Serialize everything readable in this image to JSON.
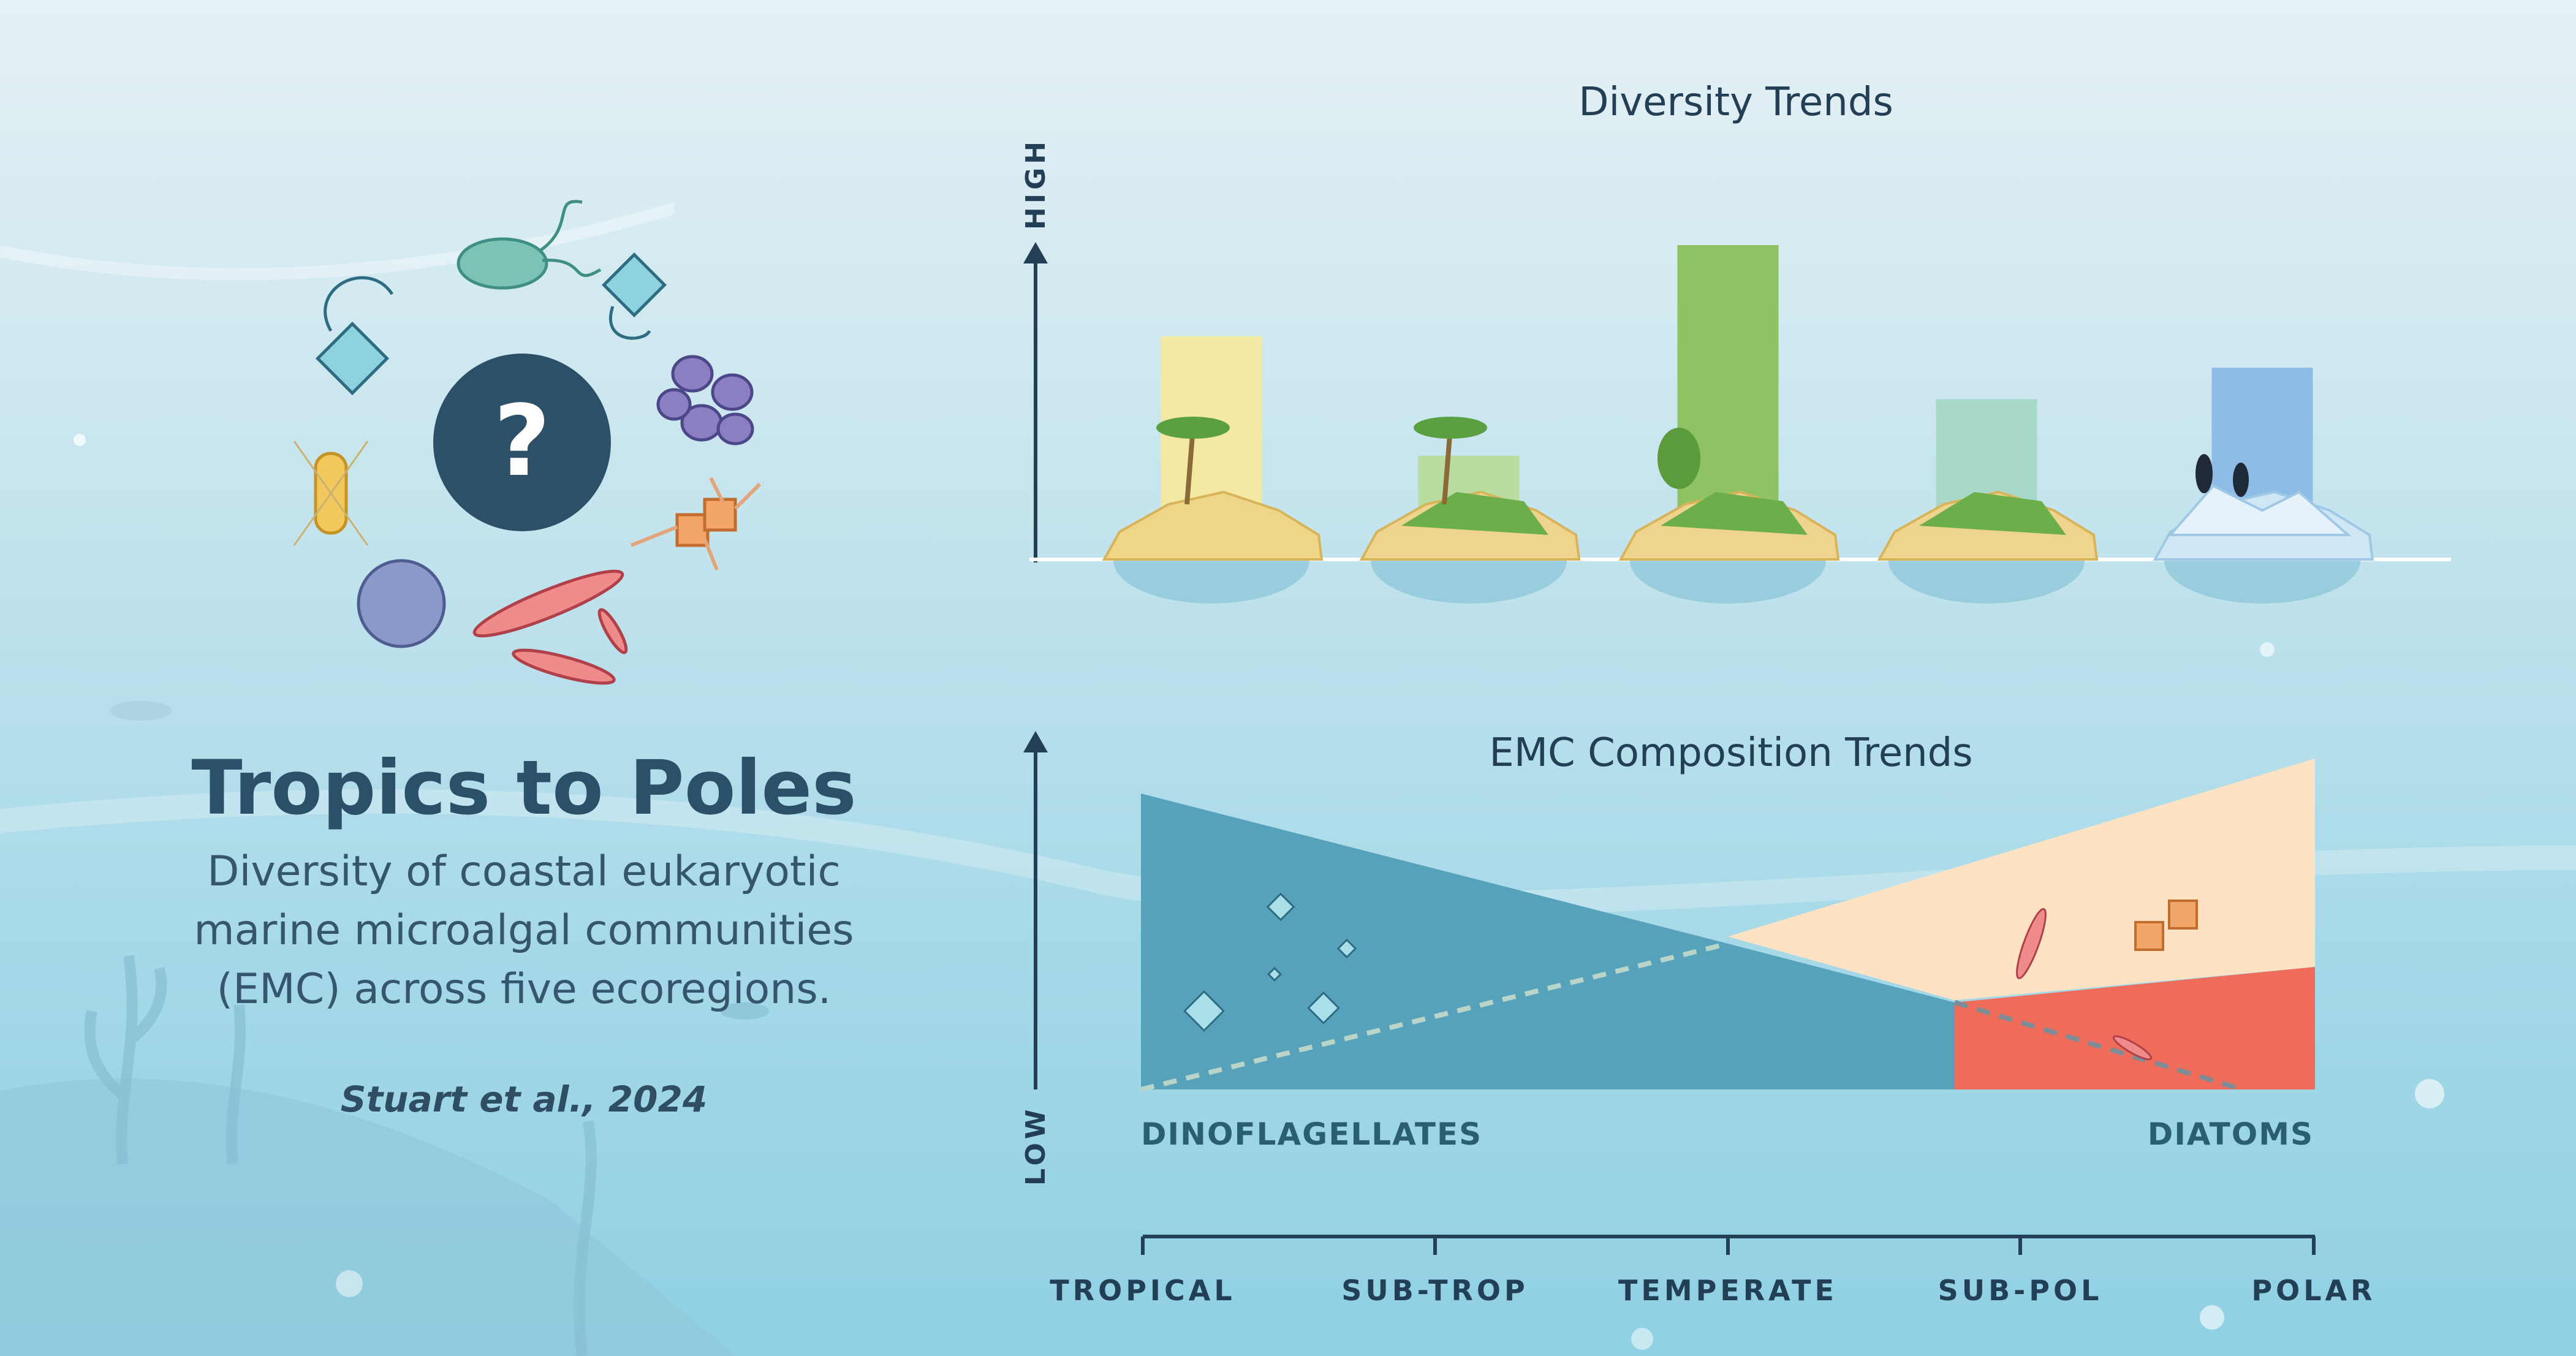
{
  "panel": {
    "title": "Tropics to Poles",
    "subtitle_lines": [
      "Diversity  of coastal eukaryotic",
      "marine microalgal communities",
      "(EMC) across five ecoregions."
    ],
    "citation": "Stuart et al., 2024",
    "center_icon": "question-mark-icon"
  },
  "chart_data": [
    {
      "type": "bar",
      "title": "Diversity Trends",
      "categories": [
        "TROPICAL",
        "SUB-TROP",
        "TEMPERATE",
        "SUB-POL",
        "POLAR"
      ],
      "values": [
        0.71,
        0.33,
        1.0,
        0.51,
        0.61
      ],
      "ylim": [
        0,
        1
      ],
      "ylabel_high": "HIGH",
      "colors": [
        "#f3e9a2",
        "#b9dca0",
        "#8ec262",
        "#a7d8c8",
        "#8dbde6"
      ],
      "bar_icons": [
        "tropical-island-icon",
        "subtropical-island-icon",
        "temperate-island-icon",
        "subpolar-island-icon",
        "polar-ice-icon"
      ]
    },
    {
      "type": "area",
      "title": "EMC Composition Trends",
      "x": [
        "TROPICAL",
        "SUB-TROP",
        "TEMPERATE",
        "SUB-POL",
        "POLAR"
      ],
      "series": [
        {
          "name": "DINOFLAGELLATES",
          "values": [
            1.0,
            0.78,
            0.48,
            0.28,
            0.0
          ],
          "color": "#57a2bb"
        },
        {
          "name": "DIATOMS",
          "values": [
            0.0,
            0.25,
            0.48,
            0.28,
            1.0
          ],
          "color": "#fde3c3"
        }
      ],
      "ylim": [
        0,
        1
      ],
      "ylabel_low": "LOW",
      "legend_left": "DINOFLAGELLATES",
      "legend_right": "DIATOMS"
    }
  ],
  "x_axis_labels": [
    "TROPICAL",
    "SUB-TROP",
    "TEMPERATE",
    "SUB-POL",
    "POLAR"
  ]
}
